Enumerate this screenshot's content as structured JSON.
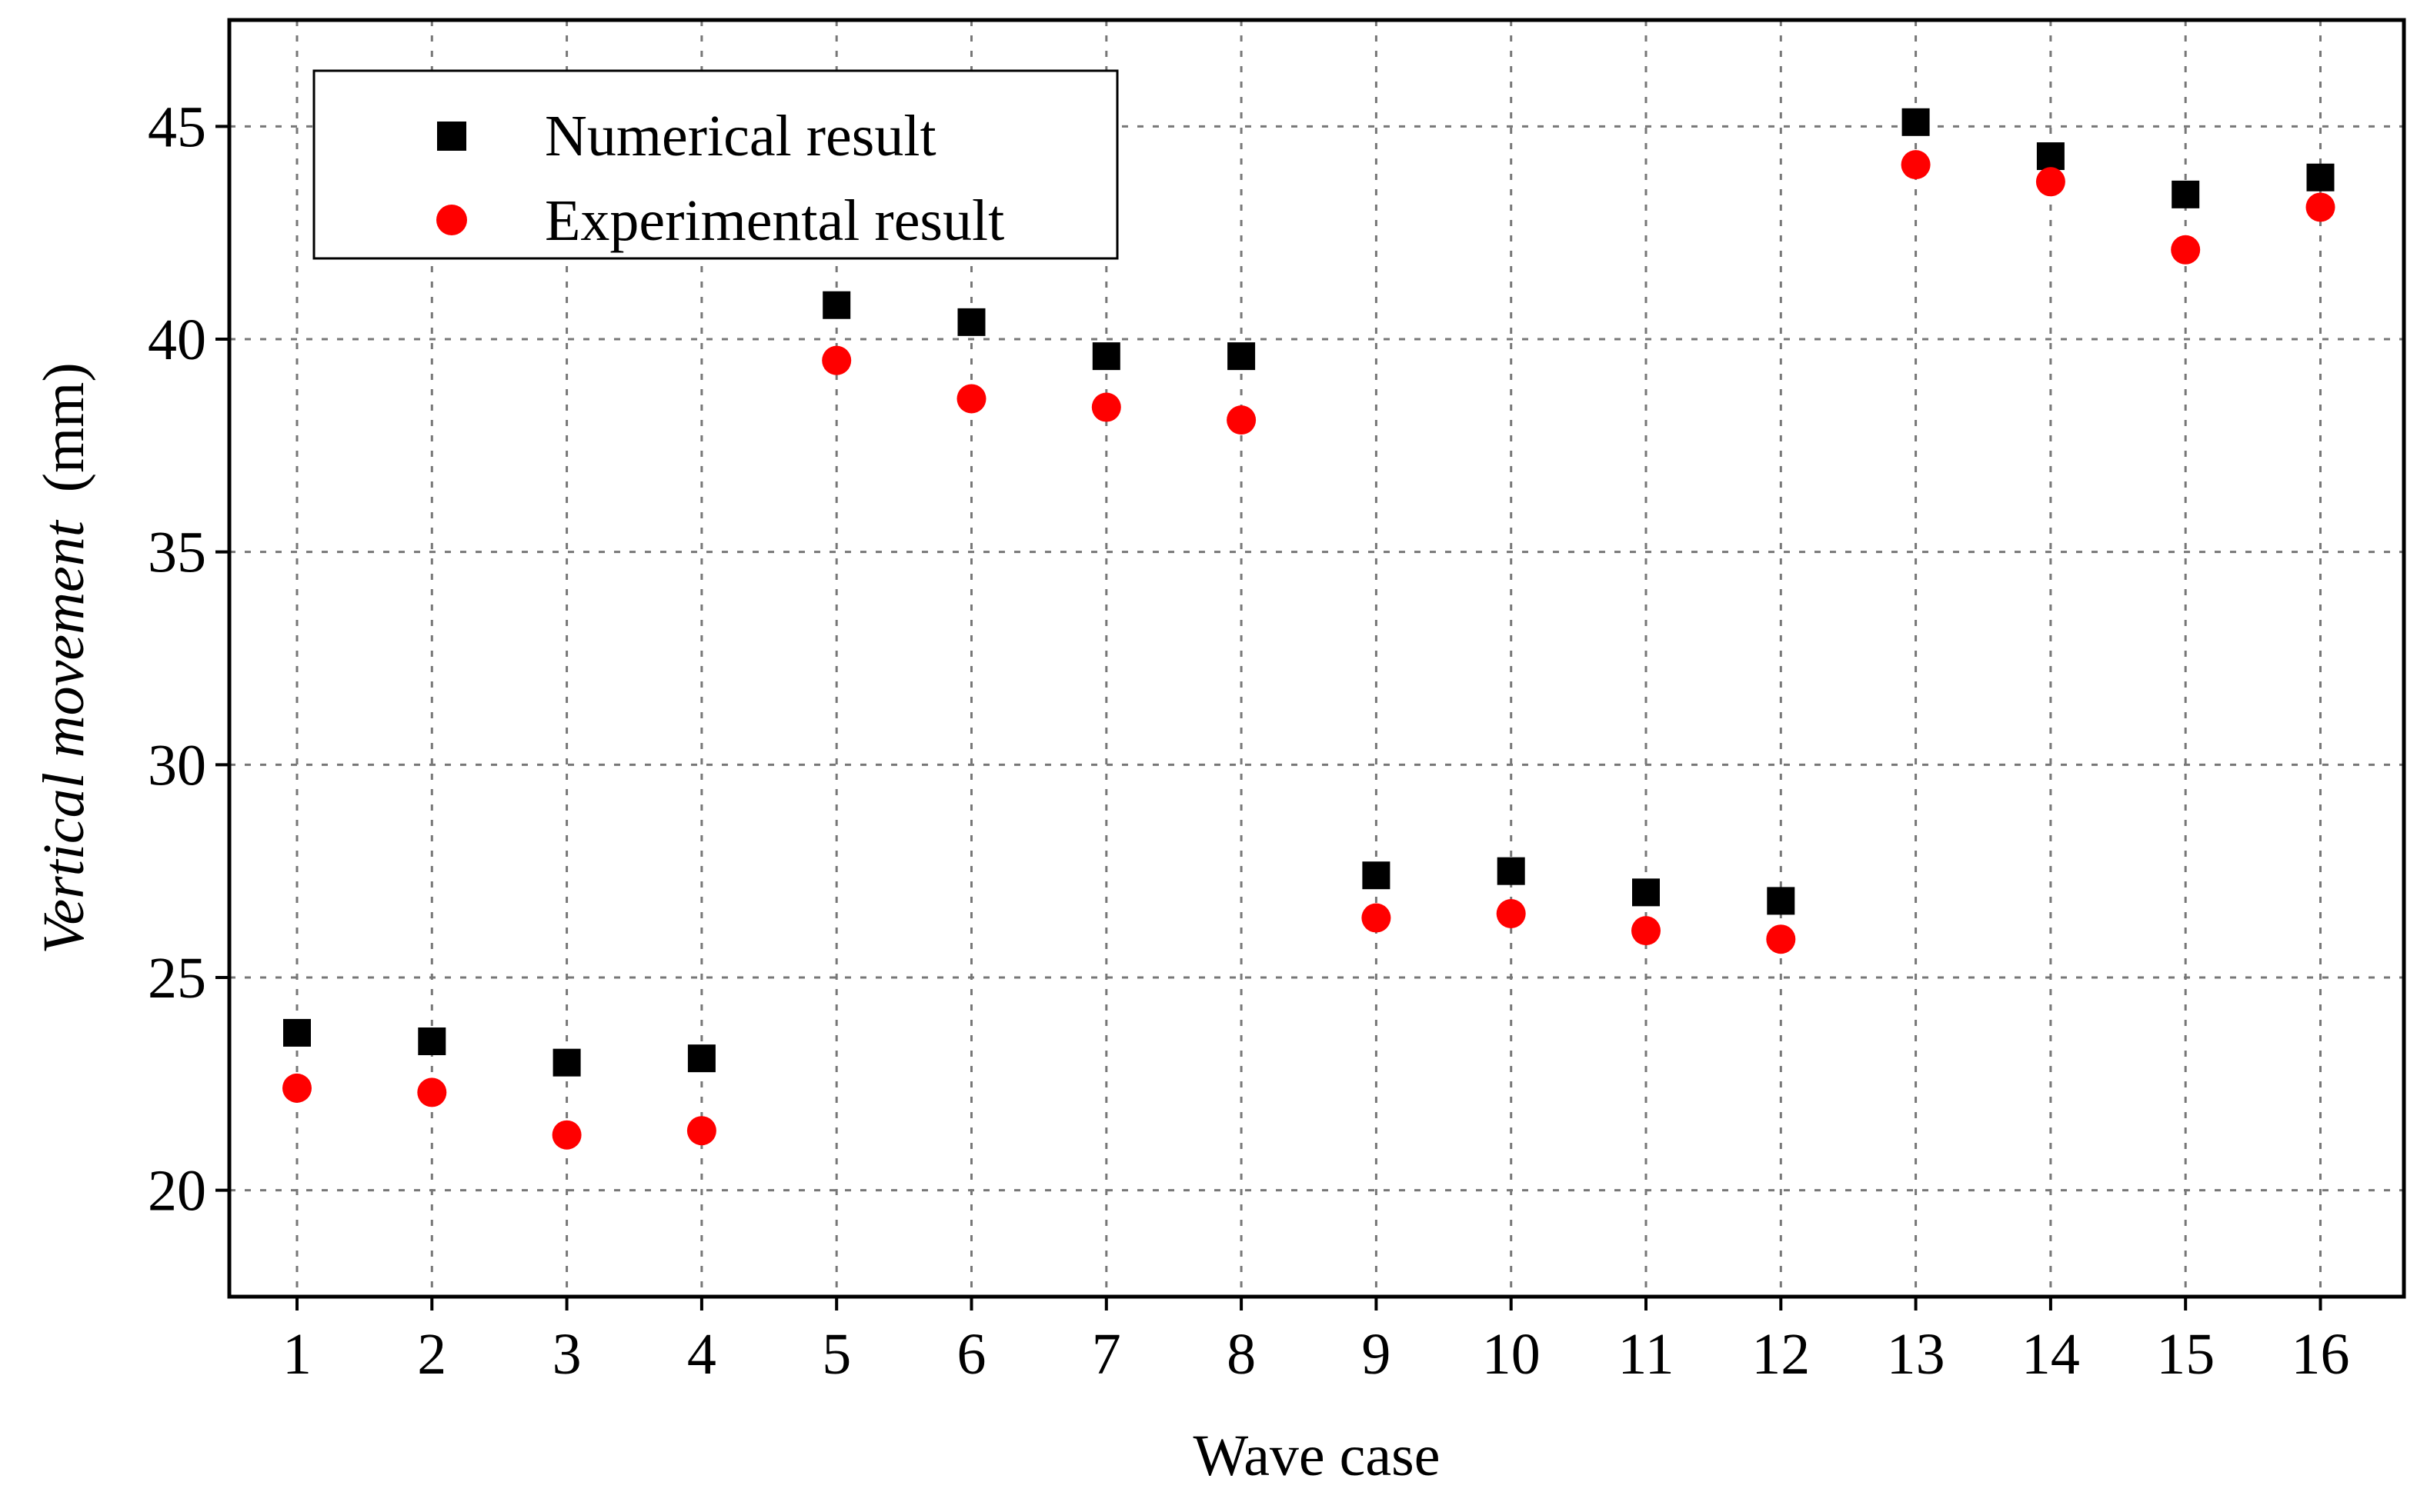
{
  "chart_data": {
    "type": "scatter",
    "title": "",
    "xlabel": "Wave case",
    "ylabel_italic": "Vertical movement",
    "ylabel_unit": "(mm)",
    "categories": [
      "1",
      "2",
      "3",
      "4",
      "5",
      "6",
      "7",
      "8",
      "9",
      "10",
      "11",
      "12",
      "13",
      "14",
      "15",
      "16"
    ],
    "ylim": [
      17.5,
      47.5
    ],
    "yticks": [
      20,
      25,
      30,
      35,
      40,
      45
    ],
    "ytick_labels": [
      "20",
      "25",
      "30",
      "35",
      "40",
      "45"
    ],
    "grid": true,
    "legend_position": "top-left",
    "series": [
      {
        "name": "Numerical result",
        "marker": "square",
        "color": "#000000",
        "values": [
          23.7,
          23.5,
          23.0,
          23.1,
          40.8,
          40.4,
          39.6,
          39.6,
          27.4,
          27.5,
          27.0,
          26.8,
          45.1,
          44.3,
          43.4,
          43.8
        ]
      },
      {
        "name": "Experimental result",
        "marker": "circle",
        "color": "#ff0000",
        "values": [
          22.4,
          22.3,
          21.3,
          21.4,
          39.5,
          38.6,
          38.4,
          38.1,
          26.4,
          26.5,
          26.1,
          25.9,
          44.1,
          43.7,
          42.1,
          43.1
        ]
      }
    ]
  }
}
